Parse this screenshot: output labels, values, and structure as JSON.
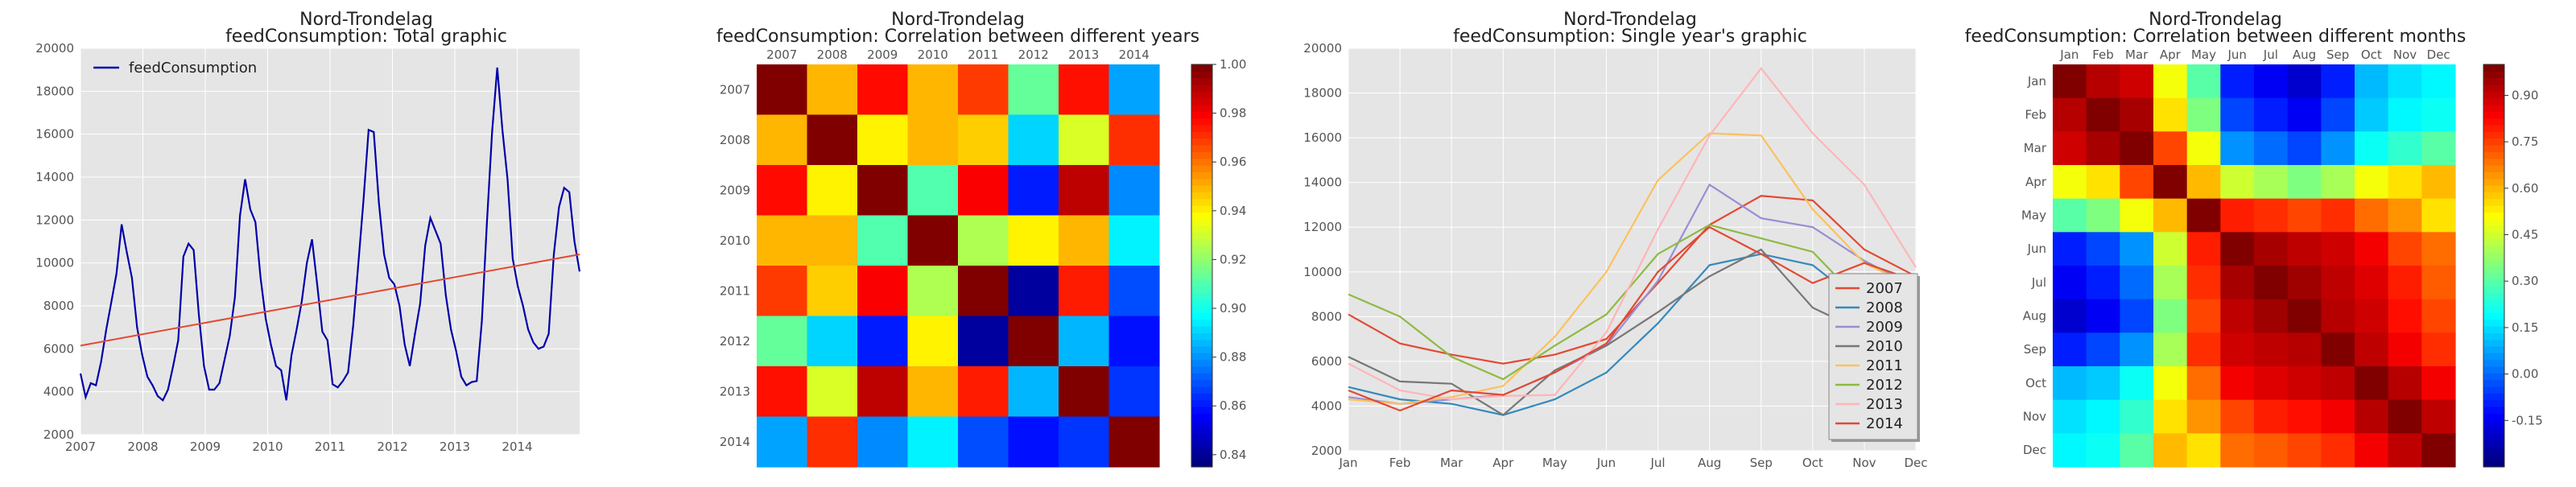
{
  "colors": {
    "panel_bg": "#e5e5e5",
    "grid": "#ffffff",
    "line_total": "#0000aa",
    "trend": "#e24a33"
  },
  "chart_data": [
    {
      "type": "line",
      "title_line1": "Nord-Trondelag",
      "title_line2": "feedConsumption: Total graphic",
      "xlim": [
        2007.0,
        2015.0
      ],
      "ylim": [
        2000,
        20000
      ],
      "xticks": [
        "2007",
        "2008",
        "2009",
        "2010",
        "2011",
        "2012",
        "2013",
        "2014"
      ],
      "yticks": [
        "2000",
        "4000",
        "6000",
        "8000",
        "10000",
        "12000",
        "14000",
        "16000",
        "18000",
        "20000"
      ],
      "legend": [
        "feedConsumption"
      ],
      "legend_position": "top-left",
      "series": [
        {
          "name": "feedConsumption",
          "color": "#0000aa",
          "values": [
            4850,
            3750,
            4400,
            4300,
            5400,
            6900,
            8200,
            9500,
            11800,
            10500,
            9300,
            7000,
            5700,
            4700,
            4300,
            3800,
            3600,
            4100,
            5200,
            6400,
            10300,
            10900,
            10600,
            7600,
            5200,
            4100,
            4100,
            4400,
            5500,
            6600,
            8400,
            12200,
            13900,
            12500,
            11900,
            9300,
            7400,
            6200,
            5200,
            5000,
            3600,
            5700,
            6900,
            8200,
            10000,
            11100,
            9000,
            6800,
            6400,
            4350,
            4200,
            4500,
            4900,
            7100,
            10000,
            12900,
            16200,
            16100,
            12800,
            10400,
            9300,
            9000,
            8000,
            6200,
            5200,
            6700,
            8100,
            10800,
            12100,
            11500,
            10900,
            8500,
            6900,
            5900,
            4700,
            4300,
            4450,
            4500,
            7300,
            11900,
            16100,
            19100,
            16200,
            13900,
            10200,
            8900,
            8000,
            6900,
            6300,
            6000,
            6100,
            6700,
            10400,
            12600,
            13500,
            13300,
            11000,
            9600
          ]
        }
      ],
      "trend_line": {
        "start": [
          2007.0,
          6150
        ],
        "end": [
          2015.0,
          10400
        ]
      }
    },
    {
      "type": "heatmap",
      "title_line1": "Nord-Trondelag",
      "title_line2": "feedConsumption: Correlation between different years",
      "labels": [
        "2007",
        "2008",
        "2009",
        "2010",
        "2011",
        "2012",
        "2013",
        "2014"
      ],
      "colorbar_range": [
        0.835,
        1.0
      ],
      "colorbar_ticks": [
        "0.84",
        "0.86",
        "0.88",
        "0.90",
        "0.92",
        "0.94",
        "0.96",
        "0.98",
        "1.00"
      ],
      "matrix": [
        [
          1.0,
          0.95,
          0.978,
          0.95,
          0.97,
          0.913,
          0.977,
          0.882
        ],
        [
          0.95,
          1.0,
          0.94,
          0.95,
          0.946,
          0.89,
          0.932,
          0.972
        ],
        [
          0.978,
          0.94,
          1.0,
          0.91,
          0.98,
          0.86,
          0.99,
          0.878
        ],
        [
          0.95,
          0.95,
          0.91,
          1.0,
          0.925,
          0.94,
          0.95,
          0.895
        ],
        [
          0.97,
          0.946,
          0.98,
          0.925,
          1.0,
          0.84,
          0.975,
          0.868
        ],
        [
          0.913,
          0.89,
          0.86,
          0.94,
          0.84,
          1.0,
          0.885,
          0.858
        ],
        [
          0.977,
          0.932,
          0.99,
          0.95,
          0.975,
          0.885,
          1.0,
          0.864
        ],
        [
          0.882,
          0.972,
          0.878,
          0.895,
          0.868,
          0.858,
          0.864,
          1.0
        ]
      ]
    },
    {
      "type": "line",
      "title_line1": "Nord-Trondelag",
      "title_line2": "feedConsumption: Single year's graphic",
      "categories": [
        "Jan",
        "Feb",
        "Mar",
        "Apr",
        "May",
        "Jun",
        "Jul",
        "Aug",
        "Sep",
        "Oct",
        "Nov",
        "Dec"
      ],
      "ylim": [
        2000,
        20000
      ],
      "yticks": [
        "2000",
        "4000",
        "6000",
        "8000",
        "10000",
        "12000",
        "14000",
        "16000",
        "18000",
        "20000"
      ],
      "legend_position": "lower-right",
      "series": [
        {
          "name": "2007",
          "color": "#e24a33",
          "values": [
            8100,
            6800,
            6300,
            5900,
            6300,
            7000,
            9500,
            12100,
            13400,
            13200,
            11000,
            9800
          ]
        },
        {
          "name": "2008",
          "color": "#348abd",
          "values": [
            4850,
            4300,
            4100,
            3600,
            4300,
            5500,
            7700,
            10300,
            10800,
            10300,
            8500,
            7800
          ]
        },
        {
          "name": "2009",
          "color": "#988ed5",
          "values": [
            4400,
            4100,
            4300,
            4500,
            5500,
            6700,
            9600,
            13900,
            12400,
            12000,
            10500,
            9300
          ]
        },
        {
          "name": "2010",
          "color": "#777777",
          "values": [
            6200,
            5100,
            5000,
            3600,
            5600,
            6700,
            8200,
            9800,
            11000,
            8400,
            7300,
            6500
          ]
        },
        {
          "name": "2011",
          "color": "#fbc15e",
          "values": [
            4300,
            4100,
            4400,
            4900,
            7100,
            10000,
            14100,
            16200,
            16100,
            12800,
            10400,
            9300
          ]
        },
        {
          "name": "2012",
          "color": "#8eba42",
          "values": [
            9000,
            8000,
            6200,
            5200,
            6700,
            8100,
            10800,
            12100,
            11500,
            10900,
            8500,
            6900
          ]
        },
        {
          "name": "2013",
          "color": "#ffb5b8",
          "values": [
            5900,
            4700,
            4300,
            4450,
            4500,
            7300,
            11900,
            16100,
            19100,
            16200,
            13900,
            10200
          ]
        },
        {
          "name": "2014",
          "color": "#e24a33",
          "values": [
            4700,
            3800,
            4700,
            4500,
            5500,
            6800,
            10000,
            12000,
            10800,
            9500,
            10400,
            9600
          ]
        }
      ]
    },
    {
      "type": "heatmap",
      "title_line1": "Nord-Trondelag",
      "title_line2": "feedConsumption: Correlation between different months",
      "labels": [
        "Jan",
        "Feb",
        "Mar",
        "Apr",
        "May",
        "Jun",
        "Jul",
        "Aug",
        "Sep",
        "Oct",
        "Nov",
        "Dec"
      ],
      "colorbar_range": [
        -0.3,
        1.0
      ],
      "colorbar_ticks": [
        "-0.15",
        "0.00",
        "0.15",
        "0.30",
        "0.45",
        "0.60",
        "0.75",
        "0.90"
      ],
      "matrix": [
        [
          1.0,
          0.93,
          0.9,
          0.5,
          0.3,
          -0.1,
          -0.15,
          -0.2,
          -0.1,
          0.1,
          0.15,
          0.18
        ],
        [
          0.93,
          1.0,
          0.95,
          0.55,
          0.35,
          -0.05,
          -0.1,
          -0.15,
          -0.05,
          0.12,
          0.18,
          0.2
        ],
        [
          0.9,
          0.95,
          1.0,
          0.75,
          0.5,
          0.05,
          0.0,
          -0.05,
          0.05,
          0.2,
          0.25,
          0.3
        ],
        [
          0.5,
          0.55,
          0.75,
          1.0,
          0.6,
          0.45,
          0.4,
          0.35,
          0.4,
          0.5,
          0.55,
          0.6
        ],
        [
          0.3,
          0.35,
          0.5,
          0.6,
          1.0,
          0.8,
          0.78,
          0.75,
          0.78,
          0.7,
          0.65,
          0.55
        ],
        [
          -0.1,
          -0.05,
          0.05,
          0.45,
          0.8,
          1.0,
          0.95,
          0.92,
          0.9,
          0.85,
          0.75,
          0.7
        ],
        [
          -0.15,
          -0.1,
          0.0,
          0.4,
          0.78,
          0.95,
          1.0,
          0.96,
          0.92,
          0.88,
          0.8,
          0.72
        ],
        [
          -0.2,
          -0.15,
          -0.05,
          0.35,
          0.75,
          0.92,
          0.96,
          1.0,
          0.93,
          0.9,
          0.82,
          0.75
        ],
        [
          -0.1,
          -0.05,
          0.05,
          0.4,
          0.78,
          0.9,
          0.92,
          0.93,
          1.0,
          0.92,
          0.85,
          0.78
        ],
        [
          0.1,
          0.12,
          0.2,
          0.5,
          0.7,
          0.85,
          0.88,
          0.9,
          0.92,
          1.0,
          0.93,
          0.85
        ],
        [
          0.15,
          0.18,
          0.25,
          0.55,
          0.65,
          0.75,
          0.8,
          0.82,
          0.85,
          0.93,
          1.0,
          0.92
        ],
        [
          0.18,
          0.2,
          0.3,
          0.6,
          0.55,
          0.7,
          0.72,
          0.75,
          0.78,
          0.85,
          0.92,
          1.0
        ]
      ]
    }
  ]
}
